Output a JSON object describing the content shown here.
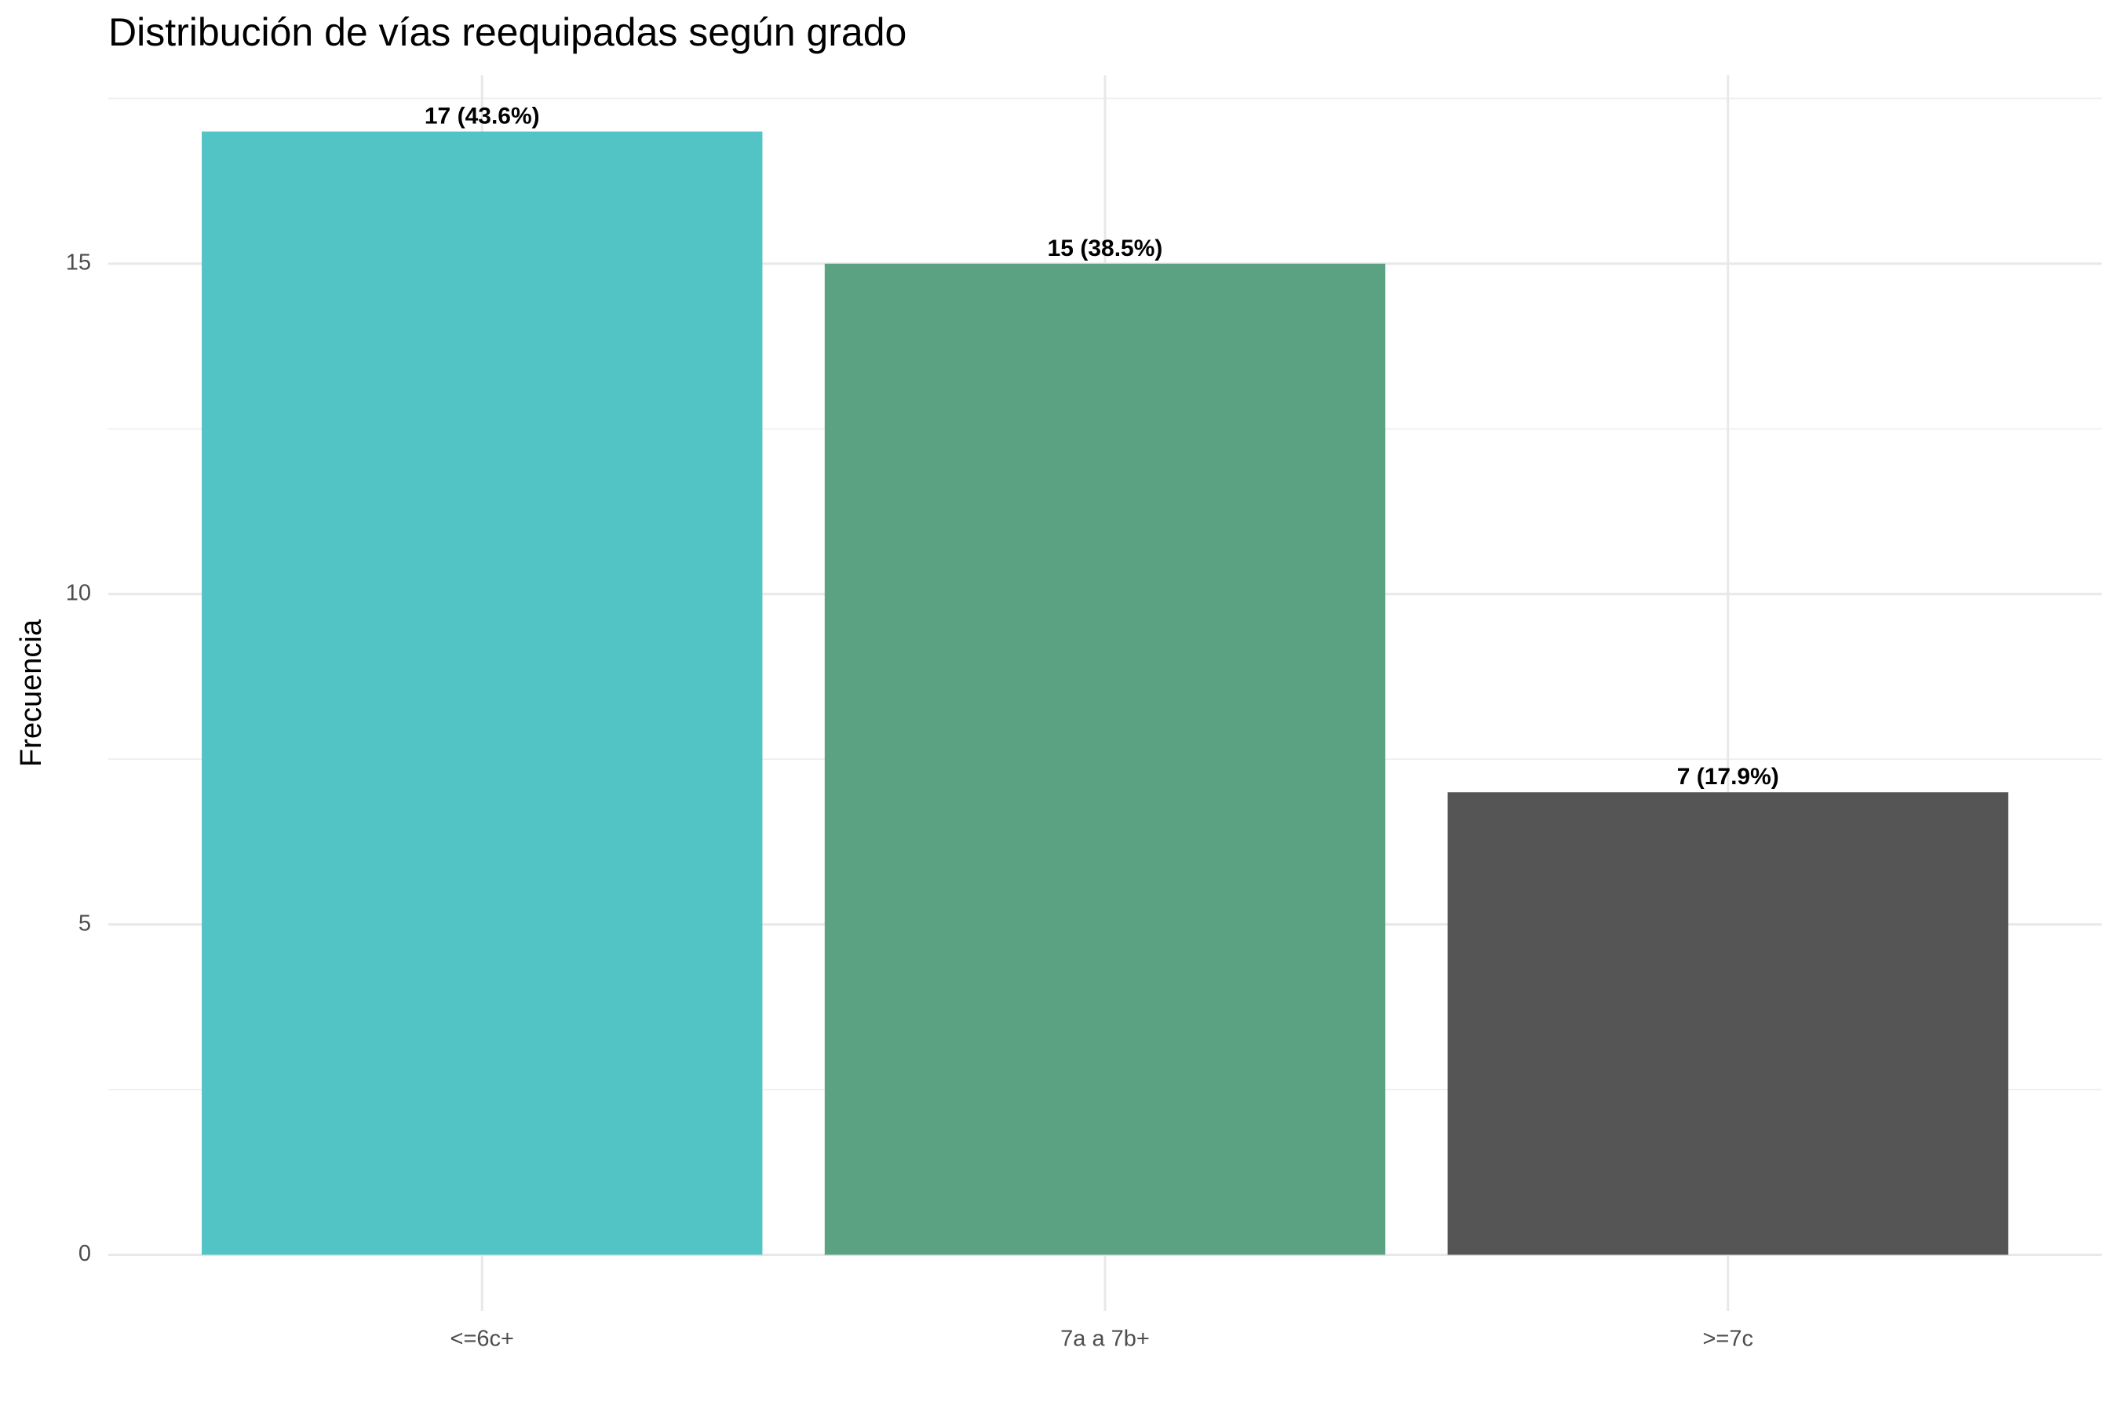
{
  "chart_data": {
    "type": "bar",
    "title": "Distribución de vías reequipadas según grado",
    "y_label": "Frecuencia",
    "categories": [
      "<=6c+",
      "7a a 7b+",
      ">=7c"
    ],
    "values": [
      17,
      15,
      7
    ],
    "value_labels": [
      "17 (43.6%)",
      "15 (38.5%)",
      "7 (17.9%)"
    ],
    "colors": [
      "#52c4c6",
      "#5ba283",
      "#555555"
    ],
    "ylim": [
      -0.85,
      17.85
    ],
    "yticks": [
      0,
      5,
      10,
      15
    ],
    "minor_yticks": [
      2.5,
      7.5,
      12.5,
      17.5
    ],
    "grid": true
  }
}
